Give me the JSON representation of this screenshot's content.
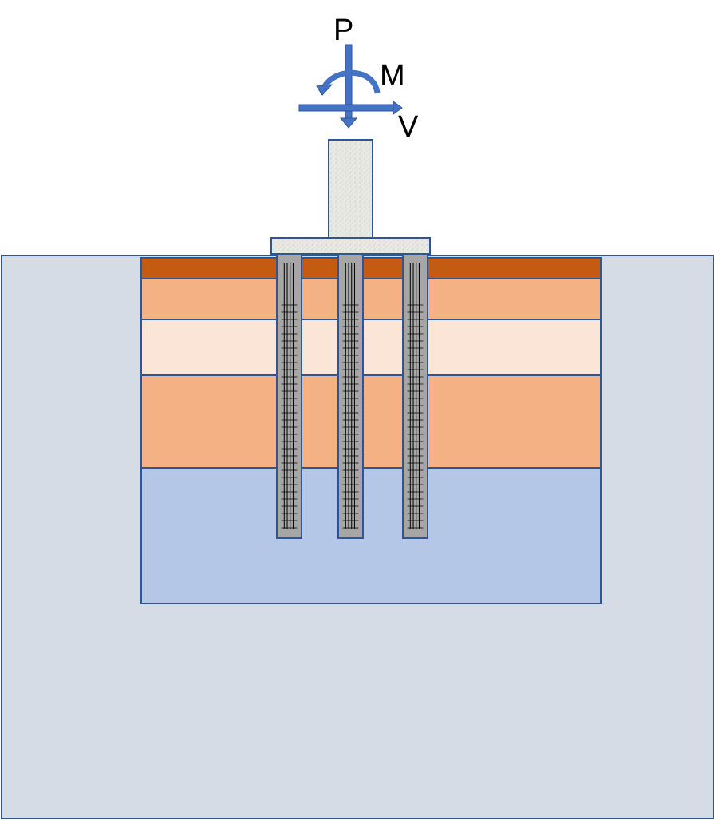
{
  "loads": {
    "axial_label": "P",
    "moment_label": "M",
    "shear_label": "V"
  },
  "colors": {
    "soil_domain": "#d6dce6",
    "border": "#2f5597",
    "arrow": "#4472c4",
    "layer_top": "#c55a11",
    "layer_sand": "#f4b183",
    "layer_light": "#fbe5d6",
    "layer_bottom": "#b4c7e7",
    "pile_fill": "#a6a6a6",
    "concrete": "#e6e6e0"
  },
  "soil_layers": [
    {
      "name": "layer-1",
      "color": "#c55a11"
    },
    {
      "name": "layer-2",
      "color": "#f4b183"
    },
    {
      "name": "layer-3",
      "color": "#fbe5d6"
    },
    {
      "name": "layer-4",
      "color": "#f4b183"
    },
    {
      "name": "layer-5",
      "color": "#b4c7e7"
    }
  ],
  "piles": [
    {
      "name": "pile-left"
    },
    {
      "name": "pile-middle"
    },
    {
      "name": "pile-right"
    }
  ]
}
